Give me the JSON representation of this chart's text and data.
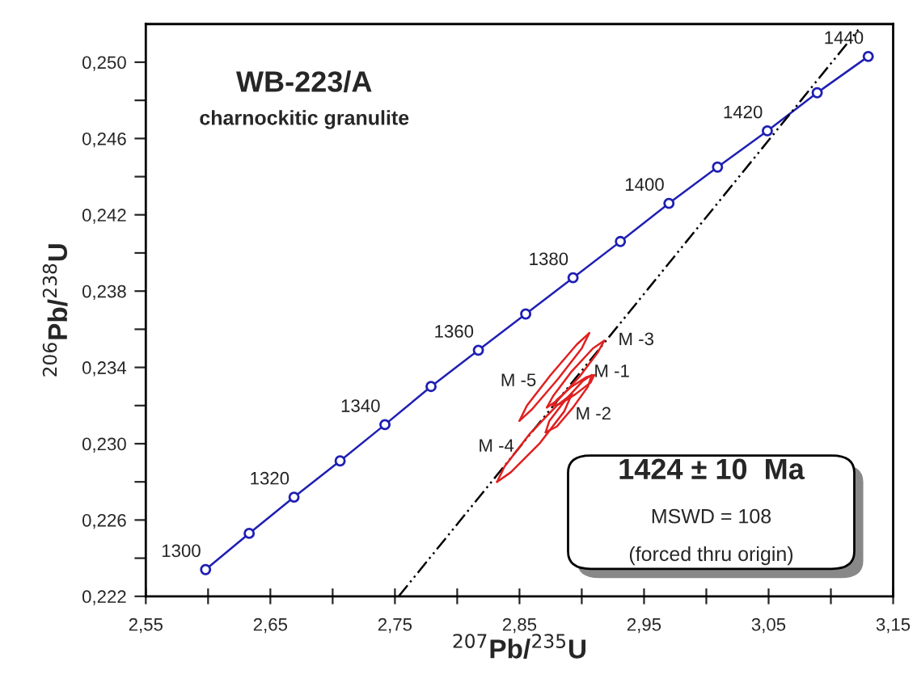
{
  "chart_data": {
    "type": "line",
    "title": "WB-223/A",
    "subtitle": "charnockitic granulite",
    "xlabel": "$^{207}$Pb/$^{235}$U",
    "ylabel": "$^{206}$Pb/$^{238}$U",
    "xlim": [
      2.55,
      3.15
    ],
    "ylim": [
      0.222,
      0.252
    ],
    "xticks": [
      {
        "value": 2.55,
        "label": "2,55"
      },
      {
        "value": 2.6,
        "label": null
      },
      {
        "value": 2.65,
        "label": "2,65"
      },
      {
        "value": 2.7,
        "label": null
      },
      {
        "value": 2.75,
        "label": "2,75"
      },
      {
        "value": 2.8,
        "label": null
      },
      {
        "value": 2.85,
        "label": "2,85"
      },
      {
        "value": 2.9,
        "label": null
      },
      {
        "value": 2.95,
        "label": "2,95"
      },
      {
        "value": 3.0,
        "label": null
      },
      {
        "value": 3.05,
        "label": "3,05"
      },
      {
        "value": 3.1,
        "label": null
      },
      {
        "value": 3.15,
        "label": "3,15"
      }
    ],
    "yticks": [
      {
        "value": 0.222,
        "label": "0,222"
      },
      {
        "value": 0.224,
        "label": null
      },
      {
        "value": 0.226,
        "label": "0,226"
      },
      {
        "value": 0.228,
        "label": null
      },
      {
        "value": 0.23,
        "label": "0,230"
      },
      {
        "value": 0.232,
        "label": null
      },
      {
        "value": 0.234,
        "label": "0,234"
      },
      {
        "value": 0.236,
        "label": null
      },
      {
        "value": 0.238,
        "label": "0,238"
      },
      {
        "value": 0.24,
        "label": null
      },
      {
        "value": 0.242,
        "label": "0,242"
      },
      {
        "value": 0.244,
        "label": null
      },
      {
        "value": 0.246,
        "label": "0,246"
      },
      {
        "value": 0.248,
        "label": null
      },
      {
        "value": 0.25,
        "label": "0,250"
      }
    ],
    "series": [
      {
        "color": "#1f1fb4",
        "marker": "circle",
        "x": [
          2.598,
          2.633,
          2.669,
          2.706,
          2.742,
          2.779,
          2.817,
          2.855,
          2.893,
          2.931,
          2.97,
          3.009,
          3.049,
          3.089,
          3.13
        ],
        "values": [
          0.2234,
          0.2253,
          0.2272,
          0.2291,
          0.231,
          0.233,
          0.2349,
          0.2368,
          0.2387,
          0.2406,
          0.2426,
          0.2445,
          0.2464,
          0.2484,
          0.2503
        ]
      },
      {
        "color": "#000000",
        "line_style": "dashdot",
        "x": [
          2.753,
          3.122
        ],
        "values": [
          0.222,
          0.2517
        ]
      },
      {
        "name": "M -5",
        "color": "#e02020",
        "x": [
          2.85,
          2.86,
          2.881,
          2.9,
          2.906
        ],
        "values": [
          0.2312,
          0.2318,
          0.2334,
          0.235,
          0.2358
        ]
      },
      {
        "color": "#e02020",
        "x": [
          2.85,
          2.856,
          2.875,
          2.896,
          2.906
        ],
        "values": [
          0.2312,
          0.232,
          0.2336,
          0.2352,
          0.2358
        ]
      },
      {
        "name": "M -3",
        "color": "#e02020",
        "x": [
          2.872,
          2.881,
          2.898,
          2.913,
          2.918
        ],
        "values": [
          0.2319,
          0.2323,
          0.2335,
          0.2348,
          0.2354
        ]
      },
      {
        "color": "#e02020",
        "x": [
          2.872,
          2.877,
          2.892,
          2.909,
          2.918
        ],
        "values": [
          0.2319,
          0.2325,
          0.2338,
          0.235,
          0.2354
        ]
      },
      {
        "name": "M -1",
        "color": "#e02020",
        "x": [
          2.877,
          2.883,
          2.895,
          2.907,
          2.91
        ],
        "values": [
          0.232,
          0.2321,
          0.2326,
          0.2332,
          0.2336
        ]
      },
      {
        "color": "#e02020",
        "x": [
          2.877,
          2.88,
          2.892,
          2.904,
          2.91
        ],
        "values": [
          0.232,
          0.2323,
          0.233,
          0.2335,
          0.2336
        ]
      },
      {
        "name": "M -2",
        "color": "#e02020",
        "x": [
          2.871,
          2.88,
          2.893,
          2.905,
          2.908
        ],
        "values": [
          0.2306,
          0.2309,
          0.2319,
          0.233,
          0.2336
        ]
      },
      {
        "color": "#e02020",
        "x": [
          2.871,
          2.874,
          2.887,
          2.901,
          2.908
        ],
        "values": [
          0.2306,
          0.2312,
          0.2323,
          0.2333,
          0.2336
        ]
      },
      {
        "name": "M -4",
        "color": "#e02020",
        "x": [
          2.832,
          2.843,
          2.866,
          2.886,
          2.892
        ],
        "values": [
          0.228,
          0.2285,
          0.23,
          0.2317,
          0.2326
        ]
      },
      {
        "color": "#e02020",
        "x": [
          2.832,
          2.838,
          2.858,
          2.88,
          2.892
        ],
        "values": [
          0.228,
          0.2288,
          0.2305,
          0.232,
          0.2326
        ]
      }
    ],
    "annotations": [
      {
        "text": "1300",
        "x": 2.598,
        "y": 0.2234
      },
      {
        "text": "1320",
        "x": 2.669,
        "y": 0.2272
      },
      {
        "text": "1340",
        "x": 2.742,
        "y": 0.231
      },
      {
        "text": "1360",
        "x": 2.817,
        "y": 0.2349
      },
      {
        "text": "1380",
        "x": 2.893,
        "y": 0.2387
      },
      {
        "text": "1400",
        "x": 2.97,
        "y": 0.2426
      },
      {
        "text": "1420",
        "x": 3.049,
        "y": 0.2464
      },
      {
        "text": "1440",
        "x": 3.13,
        "y": 0.2503
      },
      "1424 ± 10  Ma",
      "MSWD = 108",
      "(forced thru origin)"
    ]
  }
}
